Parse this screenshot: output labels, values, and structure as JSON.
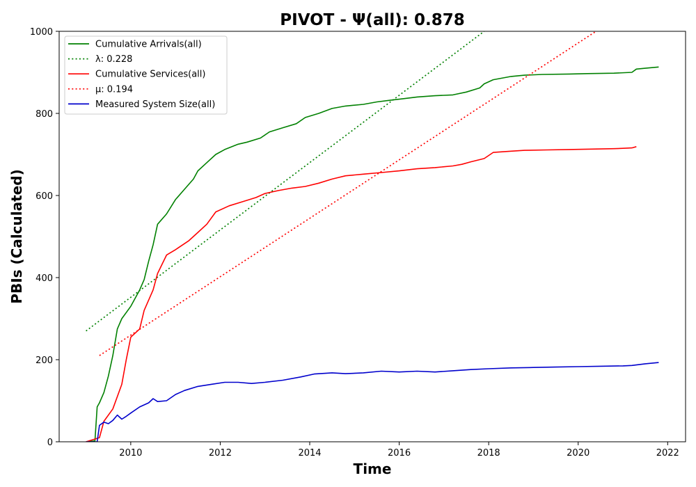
{
  "chart_data": {
    "type": "line",
    "title": "PIVOT -  Ψ(all): 0.878",
    "xlabel": "Time",
    "ylabel": "PBIs (Calculated)",
    "xlim": [
      2008.4,
      2022.4
    ],
    "ylim": [
      0,
      1000
    ],
    "xticks": [
      2010,
      2012,
      2014,
      2016,
      2018,
      2020,
      2022
    ],
    "yticks": [
      0,
      200,
      400,
      600,
      800,
      1000
    ],
    "grid": false,
    "legend_position": "top-left",
    "series": [
      {
        "name": "Cumulative Arrivals(all)",
        "color": "#008000",
        "style": "solid",
        "x": [
          2009.0,
          2009.2,
          2009.25,
          2009.3,
          2009.4,
          2009.5,
          2009.6,
          2009.7,
          2009.8,
          2010.0,
          2010.2,
          2010.3,
          2010.4,
          2010.5,
          2010.6,
          2010.8,
          2011.0,
          2011.2,
          2011.4,
          2011.5,
          2011.7,
          2011.9,
          2012.1,
          2012.4,
          2012.6,
          2012.9,
          2013.1,
          2013.4,
          2013.7,
          2013.9,
          2014.2,
          2014.5,
          2014.8,
          2015.2,
          2015.5,
          2015.8,
          2016.1,
          2016.4,
          2016.8,
          2017.2,
          2017.5,
          2017.8,
          2017.9,
          2018.1,
          2018.5,
          2018.8,
          2019.2,
          2019.8,
          2020.2,
          2020.8,
          2021.2,
          2021.3,
          2021.5,
          2021.8
        ],
        "y": [
          0,
          2,
          85,
          95,
          120,
          160,
          210,
          275,
          300,
          330,
          370,
          395,
          440,
          480,
          530,
          555,
          590,
          615,
          640,
          660,
          680,
          700,
          712,
          725,
          730,
          740,
          755,
          765,
          775,
          790,
          800,
          812,
          818,
          822,
          828,
          832,
          836,
          840,
          843,
          845,
          852,
          862,
          872,
          882,
          890,
          893,
          895,
          896,
          897,
          898,
          900,
          908,
          910,
          913
        ]
      },
      {
        "name": "λ: 0.228",
        "color": "#008000",
        "style": "dotted",
        "x": [
          2009.0,
          2017.9
        ],
        "y": [
          270,
          1000
        ]
      },
      {
        "name": "Cumulative Services(all)",
        "color": "#ff0000",
        "style": "solid",
        "x": [
          2009.0,
          2009.3,
          2009.4,
          2009.6,
          2009.8,
          2009.9,
          2010.0,
          2010.2,
          2010.3,
          2010.5,
          2010.6,
          2010.8,
          2011.0,
          2011.3,
          2011.5,
          2011.7,
          2011.9,
          2012.2,
          2012.5,
          2012.8,
          2013.0,
          2013.3,
          2013.6,
          2013.9,
          2014.2,
          2014.5,
          2014.8,
          2015.2,
          2015.6,
          2016.0,
          2016.4,
          2016.8,
          2017.2,
          2017.4,
          2017.6,
          2017.9,
          2018.1,
          2018.5,
          2018.8,
          2019.3,
          2019.8,
          2020.3,
          2020.8,
          2021.0,
          2021.2,
          2021.3
        ],
        "y": [
          0,
          10,
          50,
          80,
          140,
          200,
          255,
          275,
          320,
          370,
          410,
          455,
          468,
          490,
          510,
          530,
          560,
          575,
          585,
          595,
          605,
          612,
          618,
          622,
          630,
          640,
          648,
          652,
          656,
          660,
          665,
          668,
          672,
          676,
          682,
          690,
          705,
          708,
          710,
          711,
          712,
          713,
          714,
          715,
          716,
          719
        ]
      },
      {
        "name": "μ: 0.194",
        "color": "#ff0000",
        "style": "dotted",
        "x": [
          2009.3,
          2020.4
        ],
        "y": [
          210,
          1000
        ]
      },
      {
        "name": "Measured System Size(all)",
        "color": "#0000cc",
        "style": "solid",
        "x": [
          2009.0,
          2009.25,
          2009.3,
          2009.4,
          2009.5,
          2009.6,
          2009.7,
          2009.8,
          2009.9,
          2010.0,
          2010.2,
          2010.4,
          2010.5,
          2010.6,
          2010.8,
          2011.0,
          2011.2,
          2011.5,
          2011.8,
          2012.1,
          2012.4,
          2012.7,
          2013.0,
          2013.4,
          2013.8,
          2014.1,
          2014.5,
          2014.8,
          2015.2,
          2015.6,
          2016.0,
          2016.4,
          2016.8,
          2017.2,
          2017.6,
          2018.0,
          2018.5,
          2019.0,
          2019.5,
          2020.0,
          2020.5,
          2021.0,
          2021.2,
          2021.5,
          2021.8
        ],
        "y": [
          0,
          0,
          40,
          48,
          44,
          52,
          65,
          55,
          62,
          70,
          85,
          95,
          105,
          98,
          100,
          115,
          125,
          135,
          140,
          145,
          145,
          142,
          145,
          150,
          158,
          165,
          168,
          166,
          168,
          172,
          170,
          172,
          170,
          173,
          176,
          178,
          180,
          181,
          182,
          183,
          184,
          185,
          186,
          190,
          193
        ]
      }
    ]
  }
}
